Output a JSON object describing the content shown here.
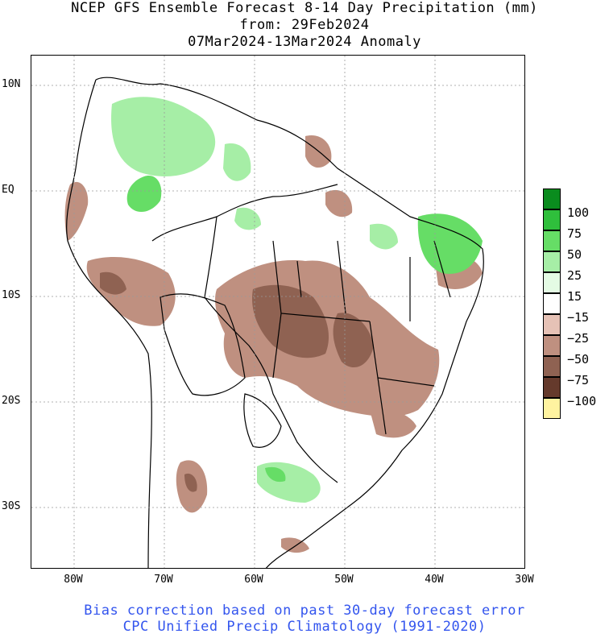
{
  "title": {
    "line1": "NCEP GFS Ensemble Forecast 8-14 Day Precipitation (mm)",
    "line2": "from: 29Feb2024",
    "line3": "07Mar2024-13Mar2024 Anomaly"
  },
  "axes": {
    "lat_labels": [
      "10N",
      "EQ",
      "10S",
      "20S",
      "30S"
    ],
    "lon_labels": [
      "80W",
      "70W",
      "60W",
      "50W",
      "40W",
      "30W"
    ]
  },
  "legend": {
    "labels": [
      "100",
      "75",
      "50",
      "25",
      "15",
      "−15",
      "−25",
      "−50",
      "−75",
      "−100"
    ],
    "colors": [
      "#0a8c1e",
      "#2fbf3c",
      "#66dd66",
      "#a6eea6",
      "#e4fbe4",
      "#ffffff",
      "#e6c2b6",
      "#bf9080",
      "#8f6252",
      "#653a2c",
      "#fff3a0"
    ]
  },
  "footer": {
    "line1": "Bias correction based on past 30-day forecast error",
    "line2": "CPC Unified Precip Climatology (1991-2020)"
  }
}
